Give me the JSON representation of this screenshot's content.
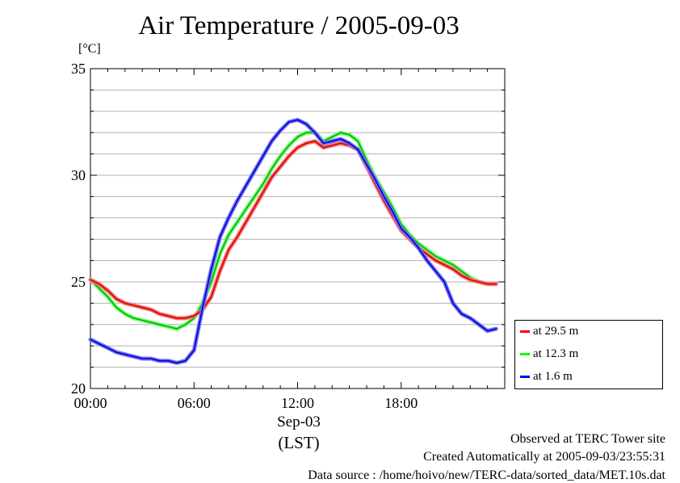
{
  "title": "Air Temperature / 2005-09-03",
  "unit_label": "[°C]",
  "xaxis": {
    "date_label": "Sep-03",
    "tz_label": "(LST)"
  },
  "notes": [
    "Observed at TERC Tower site",
    "Created Automatically at 2005-09-03/23:55:31",
    "Data source : /home/hoivo/new/TERC-data/sorted_data/MET.10s.dat"
  ],
  "chart_data": {
    "type": "line",
    "title": "Air Temperature / 2005-09-03",
    "ylabel": "[°C]",
    "xlabel": "(LST)",
    "xlim": [
      0,
      24
    ],
    "ylim": [
      20,
      35
    ],
    "x_ticks": [
      "00:00",
      "06:00",
      "12:00",
      "18:00"
    ],
    "y_ticks": [
      "20",
      "25",
      "30",
      "35"
    ],
    "grid": true,
    "legend_position": "right-bottom",
    "x": [
      0,
      0.5,
      1,
      1.5,
      2,
      2.5,
      3,
      3.5,
      4,
      4.5,
      5,
      5.5,
      6,
      6.5,
      7,
      7.5,
      8,
      8.5,
      9,
      9.5,
      10,
      10.5,
      11,
      11.5,
      12,
      12.5,
      13,
      13.5,
      14,
      14.5,
      15,
      15.5,
      16,
      16.5,
      17,
      17.5,
      18,
      18.5,
      19,
      19.5,
      20,
      20.5,
      21,
      21.5,
      22,
      22.5,
      23,
      23.5
    ],
    "series": [
      {
        "name": "at 29.5 m",
        "color": "#ff0000",
        "values": [
          25.1,
          24.9,
          24.6,
          24.2,
          24.0,
          23.9,
          23.8,
          23.7,
          23.5,
          23.4,
          23.3,
          23.3,
          23.4,
          23.7,
          24.3,
          25.5,
          26.5,
          27.1,
          27.8,
          28.5,
          29.2,
          29.9,
          30.4,
          30.9,
          31.3,
          31.5,
          31.6,
          31.3,
          31.4,
          31.5,
          31.4,
          31.2,
          30.4,
          29.6,
          28.8,
          28.1,
          27.4,
          27.0,
          26.6,
          26.3,
          26.0,
          25.8,
          25.6,
          25.3,
          25.1,
          25.0,
          24.9,
          24.9
        ]
      },
      {
        "name": "at 12.3 m",
        "color": "#00ff00",
        "values": [
          25.1,
          24.7,
          24.3,
          23.8,
          23.5,
          23.3,
          23.2,
          23.1,
          23.0,
          22.9,
          22.8,
          23.0,
          23.3,
          24.0,
          25.0,
          26.3,
          27.2,
          27.8,
          28.4,
          29.0,
          29.6,
          30.3,
          30.9,
          31.4,
          31.8,
          32.0,
          32.0,
          31.6,
          31.8,
          32.0,
          31.9,
          31.6,
          30.7,
          29.9,
          29.2,
          28.5,
          27.7,
          27.2,
          26.8,
          26.5,
          26.2,
          26.0,
          25.8,
          25.5,
          25.2,
          25.0,
          24.9,
          24.9
        ]
      },
      {
        "name": "at 1.6 m",
        "color": "#0000ff",
        "values": [
          22.3,
          22.1,
          21.9,
          21.7,
          21.6,
          21.5,
          21.4,
          21.4,
          21.3,
          21.3,
          21.2,
          21.3,
          21.8,
          23.8,
          25.6,
          27.1,
          28.0,
          28.8,
          29.5,
          30.2,
          30.9,
          31.6,
          32.1,
          32.5,
          32.6,
          32.4,
          32.0,
          31.5,
          31.6,
          31.7,
          31.5,
          31.2,
          30.5,
          29.8,
          29.0,
          28.3,
          27.5,
          27.1,
          26.6,
          26.0,
          25.5,
          25.0,
          24.0,
          23.5,
          23.3,
          23.0,
          22.7,
          22.8
        ]
      }
    ]
  }
}
